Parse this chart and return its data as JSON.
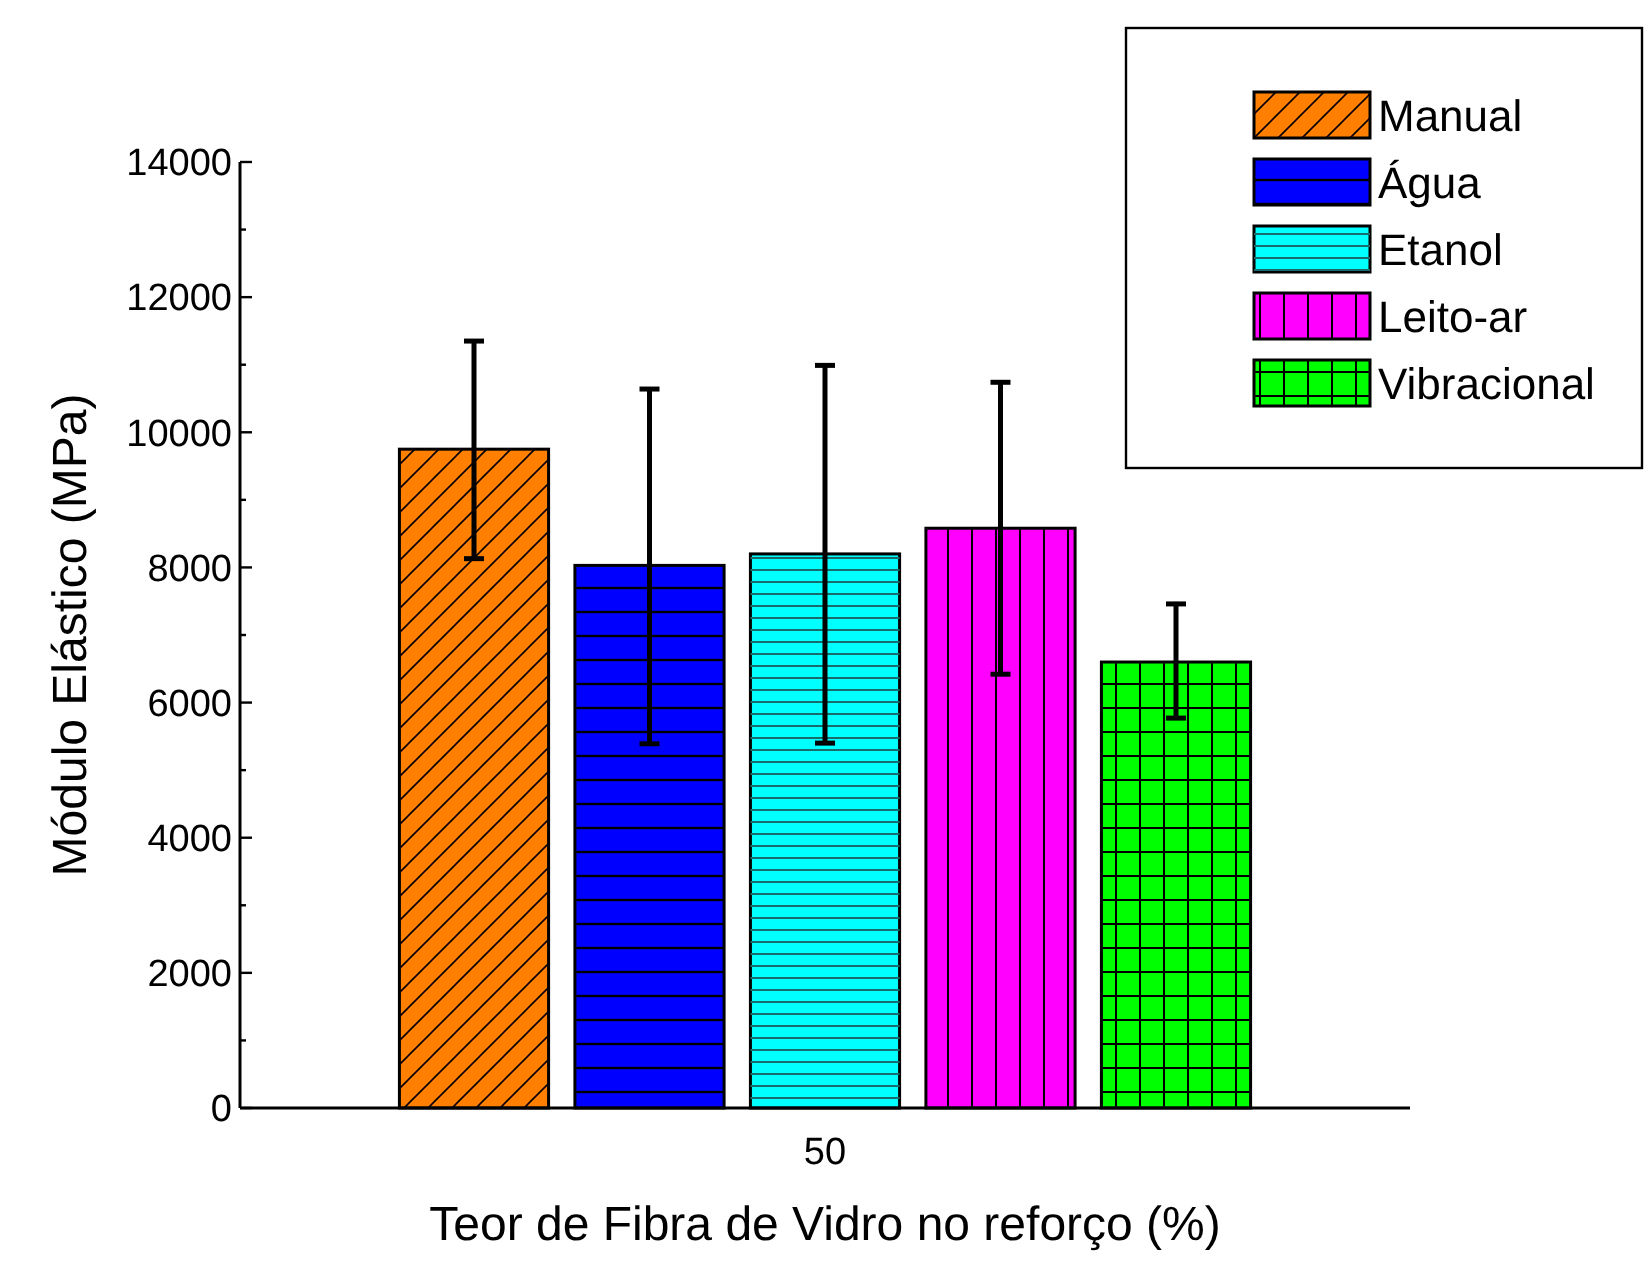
{
  "chart_data": {
    "type": "bar",
    "xlabel": "Teor de Fibra de Vidro no reforço (%)",
    "ylabel": "Módulo Elástico (MPa)",
    "categories": [
      "50"
    ],
    "series": [
      {
        "name": "Manual",
        "color": "#ff8000",
        "values": [
          9750
        ],
        "errors": [
          [
            8130,
            11350
          ]
        ]
      },
      {
        "name": "Água",
        "color": "#0000ff",
        "values": [
          8030
        ],
        "errors": [
          [
            5390,
            10640
          ]
        ]
      },
      {
        "name": "Etanol",
        "color": "#00ffff",
        "values": [
          8200
        ],
        "errors": [
          [
            5400,
            10990
          ]
        ]
      },
      {
        "name": "Leito-ar",
        "color": "#ff00ff",
        "values": [
          8580
        ],
        "errors": [
          [
            6420,
            10740
          ]
        ]
      },
      {
        "name": "Vibracional",
        "color": "#00ff00",
        "values": [
          6600
        ],
        "errors": [
          [
            5770,
            7460
          ]
        ]
      }
    ],
    "ylim": [
      0,
      14000
    ],
    "yticks": [
      0,
      {
        "value": 1000,
        "label": null
      },
      2000,
      {
        "value": 3000,
        "label": null
      },
      4000,
      {
        "value": 5000,
        "label": null
      },
      6000,
      {
        "value": 7000,
        "label": null
      },
      8000,
      {
        "value": 9000,
        "label": null
      },
      10000,
      {
        "value": 11000,
        "label": null
      },
      12000,
      {
        "value": 13000,
        "label": null
      },
      14000
    ],
    "grid": false,
    "legend": "top right"
  }
}
